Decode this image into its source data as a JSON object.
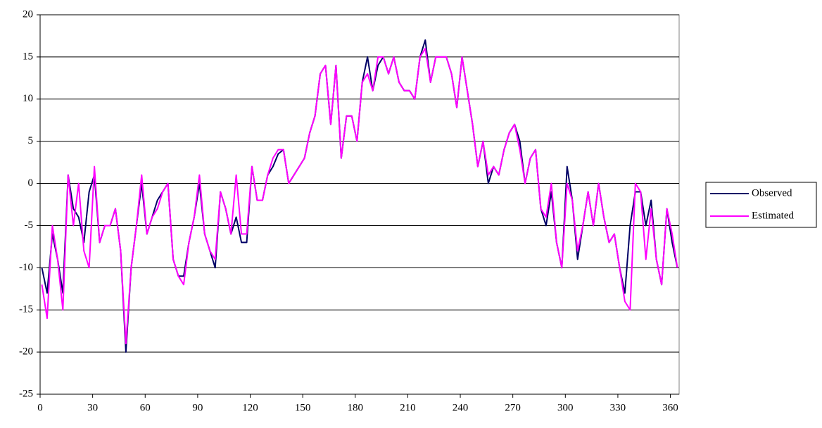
{
  "chart_data": {
    "type": "line",
    "x": [
      1,
      4,
      7,
      10,
      13,
      16,
      19,
      22,
      25,
      28,
      31,
      34,
      37,
      40,
      43,
      46,
      49,
      52,
      55,
      58,
      61,
      64,
      67,
      70,
      73,
      76,
      79,
      82,
      85,
      88,
      91,
      94,
      97,
      100,
      103,
      106,
      109,
      112,
      115,
      118,
      121,
      124,
      127,
      130,
      133,
      136,
      139,
      142,
      145,
      148,
      151,
      154,
      157,
      160,
      163,
      166,
      169,
      172,
      175,
      178,
      181,
      184,
      187,
      190,
      193,
      196,
      199,
      202,
      205,
      208,
      211,
      214,
      217,
      220,
      223,
      226,
      229,
      232,
      235,
      238,
      241,
      244,
      247,
      250,
      253,
      256,
      259,
      262,
      265,
      268,
      271,
      274,
      277,
      280,
      283,
      286,
      289,
      292,
      295,
      298,
      301,
      304,
      307,
      310,
      313,
      316,
      319,
      322,
      325,
      328,
      331,
      334,
      337,
      340,
      343,
      346,
      349,
      352,
      355,
      358,
      361,
      364
    ],
    "series": [
      {
        "name": "Observed",
        "color": "#000066",
        "values": [
          -10,
          -13,
          -6,
          -9,
          -13,
          1,
          -3,
          -4,
          -7,
          -1,
          1,
          -7,
          -5,
          -5,
          -3,
          -8,
          -20,
          -10,
          -5,
          0,
          -6,
          -4,
          -2,
          -1,
          0,
          -9,
          -11,
          -11,
          -7,
          -4,
          0,
          -6,
          -8,
          -10,
          -1,
          -3,
          -6,
          -4,
          -7,
          -7,
          2,
          -2,
          -2,
          1,
          2,
          3.5,
          4,
          0,
          1,
          2,
          3,
          6,
          8,
          13,
          14,
          7,
          14,
          3,
          8,
          8,
          5,
          12,
          15,
          11,
          14,
          15,
          13,
          15,
          12,
          11,
          11,
          10,
          15,
          17,
          12,
          15,
          15,
          15,
          13,
          9,
          15,
          11,
          7,
          2,
          5,
          0,
          2,
          1,
          4,
          6,
          7,
          5,
          0,
          3,
          4,
          -3,
          -5,
          -1,
          -7,
          -10,
          2,
          -2,
          -9,
          -5,
          -1,
          -5,
          0,
          -4,
          -7,
          -6,
          -10,
          -13,
          -5,
          -1,
          -1,
          -5,
          -2,
          -9,
          -12,
          -3,
          -7,
          -10
        ]
      },
      {
        "name": "Estimated",
        "color": "#ff00ff",
        "values": [
          -12,
          -16,
          -5,
          -9,
          -15,
          1,
          -5,
          0,
          -8,
          -10,
          2,
          -7,
          -5,
          -5,
          -3,
          -8,
          -19,
          -10,
          -5,
          1,
          -6,
          -4,
          -3,
          -1,
          0,
          -9,
          -11,
          -12,
          -7,
          -4,
          1,
          -6,
          -8,
          -9,
          -1,
          -3,
          -6,
          1,
          -6,
          -6,
          2,
          -2,
          -2,
          1,
          3,
          4,
          4,
          0,
          1,
          2,
          3,
          6,
          8,
          13,
          14,
          7,
          14,
          3,
          8,
          8,
          5,
          12,
          13,
          11,
          15,
          15,
          13,
          15,
          12,
          11,
          11,
          10,
          15,
          16,
          12,
          15,
          15,
          15,
          13,
          9,
          15,
          11,
          7,
          2,
          5,
          1,
          2,
          1,
          4,
          6,
          7,
          4,
          0,
          3,
          4,
          -3,
          -4,
          0,
          -7,
          -10,
          0,
          -2,
          -8,
          -5,
          -1,
          -5,
          0,
          -4,
          -7,
          -6,
          -10,
          -14,
          -15,
          0,
          -1,
          -9,
          -3,
          -9,
          -12,
          -3,
          -6,
          -10
        ]
      }
    ],
    "xlim": [
      0,
      365
    ],
    "xticks": [
      0,
      30,
      60,
      90,
      120,
      150,
      180,
      210,
      240,
      270,
      300,
      330,
      360
    ],
    "ylim": [
      -25,
      20
    ],
    "yticks": [
      -25,
      -20,
      -15,
      -10,
      -5,
      0,
      5,
      10,
      15,
      20
    ],
    "grid": true,
    "legend": "right"
  }
}
